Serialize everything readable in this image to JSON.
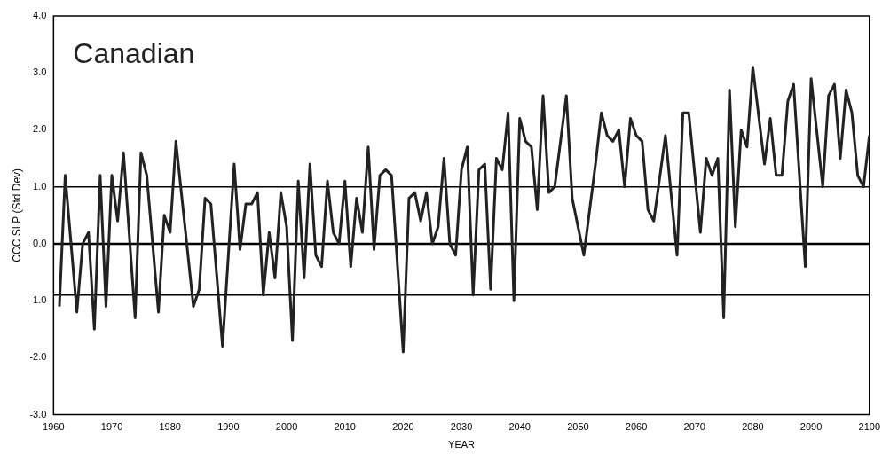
{
  "chart_data": {
    "type": "line",
    "title": "Canadian",
    "xlabel": "YEAR",
    "ylabel": "CCC SLP (Std Dev)",
    "xlim": [
      1960,
      2100
    ],
    "xticks": [
      1960,
      1970,
      1980,
      1990,
      2000,
      2010,
      2020,
      2030,
      2040,
      2050,
      2060,
      2070,
      2080,
      2090,
      2100
    ],
    "ylim": [
      -3,
      4
    ],
    "yticks": [
      {
        "value": -3,
        "label": "-3.0"
      },
      {
        "value": -2,
        "label": "-2.0"
      },
      {
        "value": -1,
        "label": "-1.0"
      },
      {
        "value": 0,
        "label": "0.0"
      },
      {
        "value": 1,
        "label": "1.0"
      },
      {
        "value": 2,
        "label": "2.0"
      },
      {
        "value": 3,
        "label": "3.0"
      },
      {
        "value": 4,
        "label": "4.0"
      }
    ],
    "grid": false,
    "legend": false,
    "marker": "none",
    "line_style": "solid",
    "ref_lines": [
      {
        "axis": "y",
        "value": 0,
        "color": "#000000"
      },
      {
        "axis": "y",
        "value": 1,
        "color": "#000000"
      },
      {
        "axis": "y",
        "value": -0.9,
        "color": "#000000"
      }
    ],
    "series": [
      {
        "color": "#222222",
        "x": [
          1961,
          1962,
          1964,
          1965,
          1966,
          1967,
          1968,
          1969,
          1970,
          1971,
          1972,
          1974,
          1975,
          1976,
          1978,
          1979,
          1980,
          1981,
          1984,
          1985,
          1986,
          1987,
          1989,
          1991,
          1992,
          1993,
          1994,
          1995,
          1996,
          1997,
          1998,
          1999,
          2000,
          2001,
          2002,
          2003,
          2004,
          2005,
          2006,
          2007,
          2008,
          2009,
          2010,
          2011,
          2012,
          2013,
          2014,
          2015,
          2016,
          2017,
          2018,
          2020,
          2021,
          2022,
          2023,
          2024,
          2025,
          2026,
          2027,
          2028,
          2029,
          2030,
          2031,
          2032,
          2033,
          2034,
          2035,
          2036,
          2037,
          2038,
          2039,
          2040,
          2041,
          2042,
          2043,
          2044,
          2045,
          2046,
          2048,
          2049,
          2051,
          2053,
          2054,
          2055,
          2056,
          2057,
          2058,
          2059,
          2060,
          2061,
          2062,
          2063,
          2065,
          2067,
          2068,
          2069,
          2071,
          2072,
          2073,
          2074,
          2075,
          2076,
          2077,
          2078,
          2079,
          2080,
          2082,
          2083,
          2084,
          2085,
          2086,
          2087,
          2089,
          2090,
          2092,
          2093,
          2094,
          2095,
          2096,
          2097,
          2098,
          2099,
          2100
        ],
        "values": [
          -1.1,
          1.2,
          -1.2,
          0.0,
          0.2,
          -1.5,
          1.2,
          -1.1,
          1.2,
          0.4,
          1.6,
          -1.3,
          1.6,
          1.2,
          -1.2,
          0.5,
          0.2,
          1.8,
          -1.1,
          -0.8,
          0.8,
          0.7,
          -1.8,
          1.4,
          -0.1,
          0.7,
          0.7,
          0.9,
          -0.9,
          0.2,
          -0.6,
          0.9,
          0.3,
          -1.7,
          1.1,
          -0.6,
          1.4,
          -0.2,
          -0.4,
          1.1,
          0.2,
          0.0,
          1.1,
          -0.4,
          0.8,
          0.2,
          1.7,
          -0.1,
          1.2,
          1.3,
          1.2,
          -1.9,
          0.8,
          0.9,
          0.4,
          0.9,
          0.0,
          0.3,
          1.5,
          0.0,
          -0.2,
          1.3,
          1.7,
          -0.9,
          1.3,
          1.4,
          -0.8,
          1.5,
          1.3,
          2.3,
          -1.0,
          2.2,
          1.8,
          1.7,
          0.6,
          2.6,
          0.9,
          1.0,
          2.6,
          0.8,
          -0.2,
          1.4,
          2.3,
          1.9,
          1.8,
          2.0,
          1.0,
          2.2,
          1.9,
          1.8,
          0.6,
          0.4,
          1.9,
          -0.2,
          2.3,
          2.3,
          0.2,
          1.5,
          1.2,
          1.5,
          -1.3,
          2.7,
          0.3,
          2.0,
          1.7,
          3.1,
          1.4,
          2.2,
          1.2,
          1.2,
          2.5,
          2.8,
          -0.4,
          2.9,
          1.0,
          2.6,
          2.8,
          1.5,
          2.7,
          2.3,
          1.2,
          1.0,
          1.9
        ]
      }
    ]
  }
}
